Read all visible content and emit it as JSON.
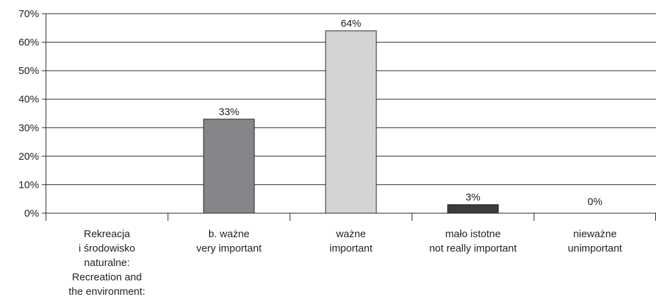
{
  "chart_data": {
    "type": "bar",
    "categories": [
      "Rekreacja\ni środowisko\nnaturalne:\nRecreation and\nthe environment:",
      "b. ważne\nvery important",
      "ważne\nimportant",
      "mało istotne\nnot really important",
      "nieważne\nunimportant"
    ],
    "values": [
      null,
      33,
      64,
      3,
      0
    ],
    "value_labels": [
      null,
      "33%",
      "64%",
      "3%",
      "0%"
    ],
    "colors": [
      null,
      "#858689",
      "#d3d4d6",
      "#3c3c3e",
      "#858689"
    ],
    "ylim": [
      0,
      70
    ],
    "yticks": [
      {
        "value": 0,
        "label": "0%"
      },
      {
        "value": 10,
        "label": "10%"
      },
      {
        "value": 20,
        "label": "20%"
      },
      {
        "value": 30,
        "label": "30%"
      },
      {
        "value": 40,
        "label": "40%"
      },
      {
        "value": 50,
        "label": "50%"
      },
      {
        "value": 60,
        "label": "60%"
      },
      {
        "value": 70,
        "label": "70%"
      }
    ],
    "grid": true
  }
}
